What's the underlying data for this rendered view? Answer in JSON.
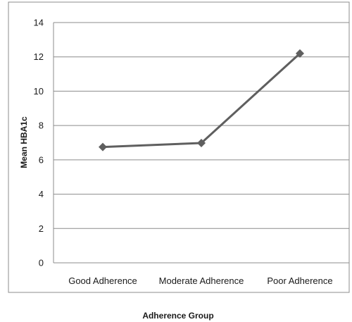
{
  "chart_data": {
    "type": "line",
    "categories": [
      "Good Adherence",
      "Moderate Adherence",
      "Poor Adherence"
    ],
    "series": [
      {
        "values": [
          6.75,
          6.98,
          12.2
        ],
        "color": "#5f5f5f"
      }
    ],
    "xlabel": "Adherence Group",
    "ylabel": "Mean HBA1c",
    "ylim": [
      0,
      14
    ],
    "yticks": [
      "0",
      "2",
      "4",
      "6",
      "8",
      "10",
      "12",
      "14"
    ],
    "grid": true,
    "marker": "diamond",
    "legend": false
  }
}
